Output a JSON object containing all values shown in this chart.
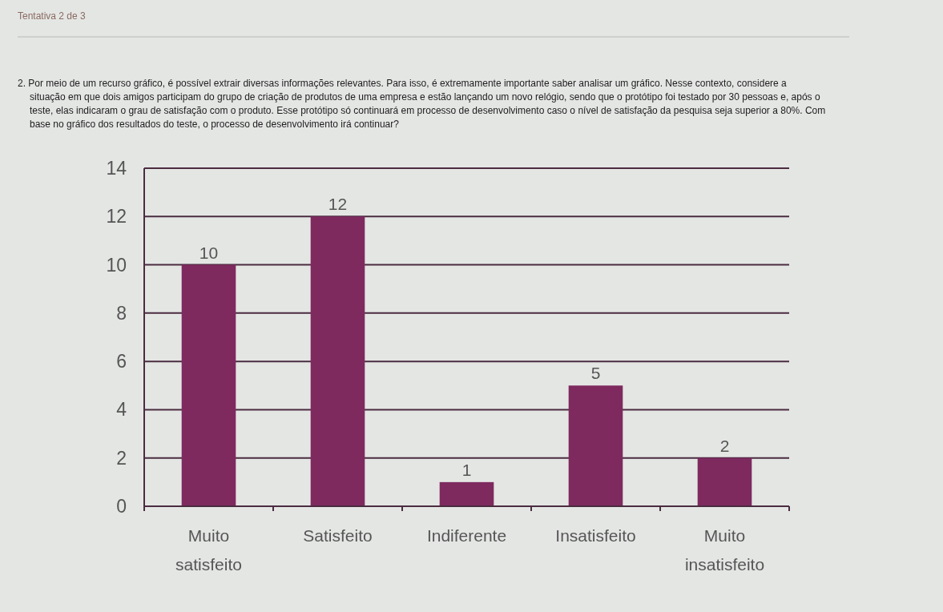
{
  "chart_data": {
    "type": "bar",
    "title": "2. Por meio de um recurso gráfico, é possível extrair diversas informações relevantes. Para isso, é extremamente importante saber analisar um gráfico. Nesse contexto, considere a situação em que dois amigos participam do grupo de criação de produtos de uma empresa e estão lançando um novo relógio, sendo que o protótipo foi testado por 30 pessoas e, após o teste, elas indicaram o grau de satisfação com o produto. Esse protótipo só continuará em processo de desenvolvimento caso o nível de satisfação da pesquisa seja superior a 80%. Com base no gráfico dos resultados do teste, o processo de desenvolvimento irá continuar?",
    "annotations": [
      "Tentativa 2 de 3"
    ],
    "categories": [
      "Muito satisfeito",
      "Satisfeito",
      "Indiferente",
      "Insatisfeito",
      "Muito insatisfeito"
    ],
    "values": [
      10,
      12,
      1,
      5,
      2
    ],
    "color": "#7e2a5f",
    "ylim": [
      0,
      14
    ],
    "yticks": [
      0,
      2,
      4,
      6,
      8,
      10,
      12,
      14
    ],
    "grid": "y",
    "data_labels": true
  }
}
